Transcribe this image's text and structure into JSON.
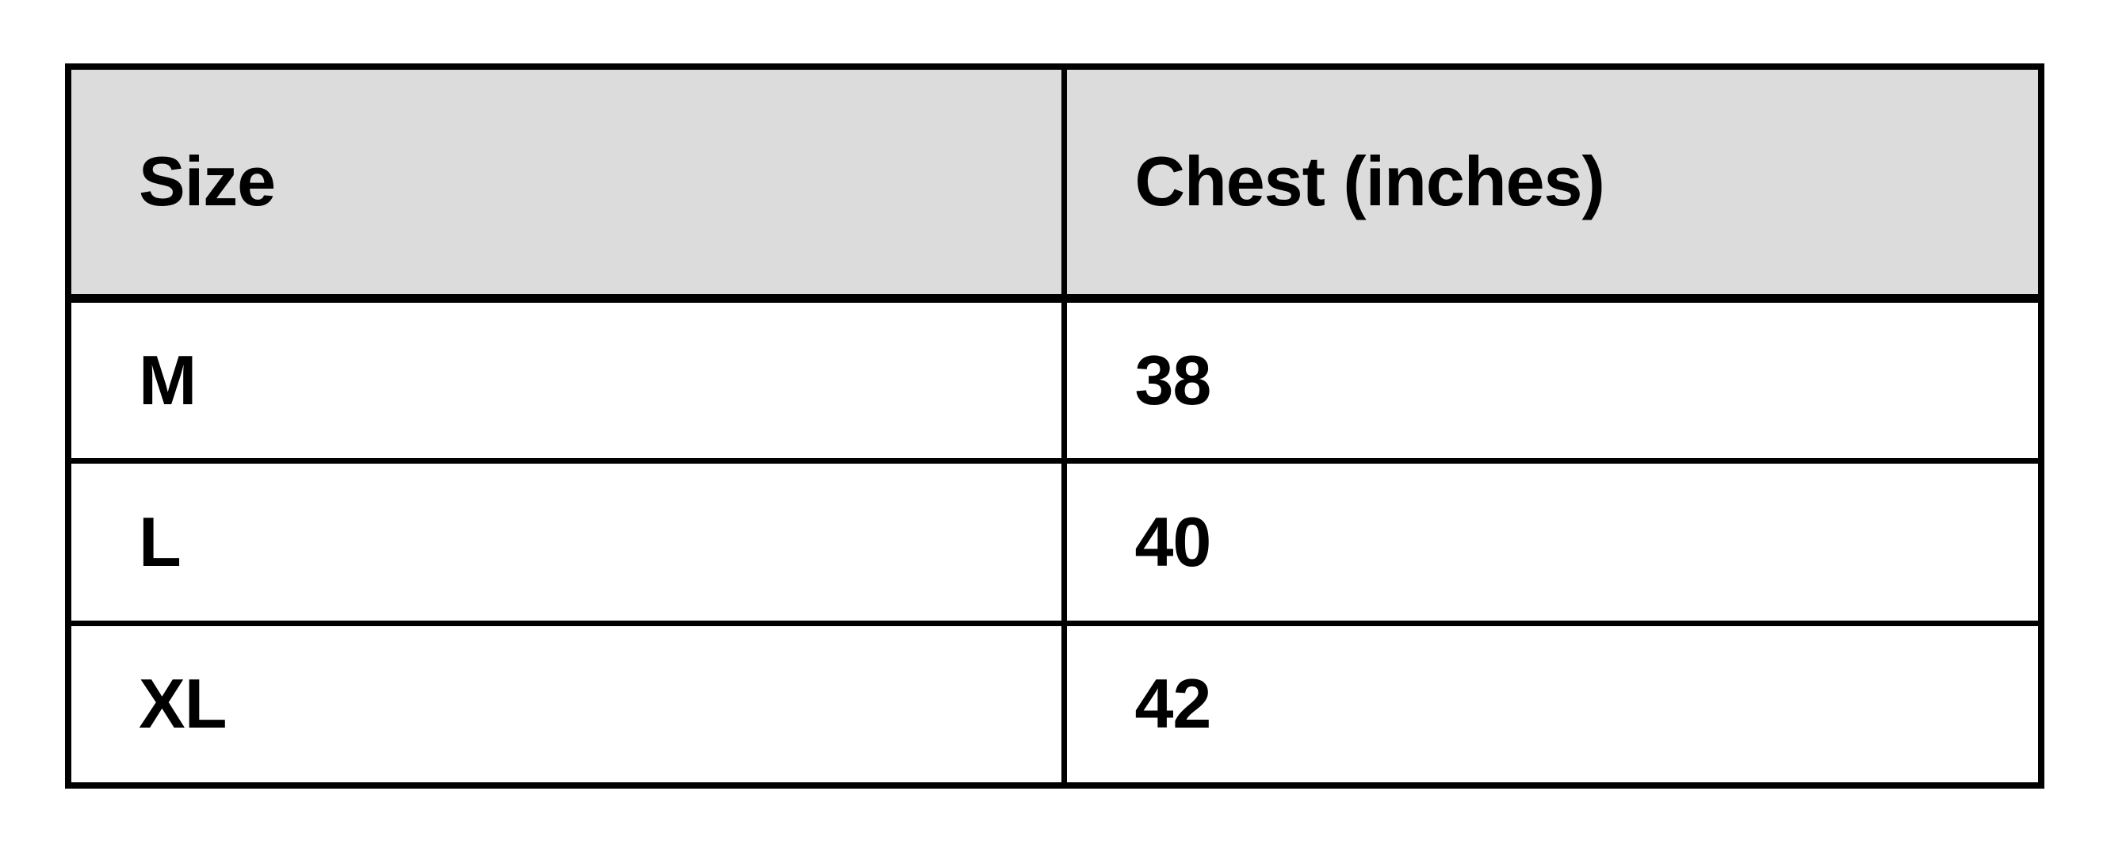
{
  "page": {
    "background": "#ffffff"
  },
  "theme": {
    "header_bg": "#dcdcdc",
    "border_color": "#000000",
    "text_color": "#000000",
    "row_bg": "#ffffff"
  },
  "table": {
    "title": "size-chart",
    "columns": [
      {
        "label": "Size"
      },
      {
        "label": "Chest (inches)"
      }
    ],
    "rows": [
      {
        "size": "M",
        "chest": "38"
      },
      {
        "size": "L",
        "chest": "40"
      },
      {
        "size": "XL",
        "chest": "42"
      }
    ]
  }
}
